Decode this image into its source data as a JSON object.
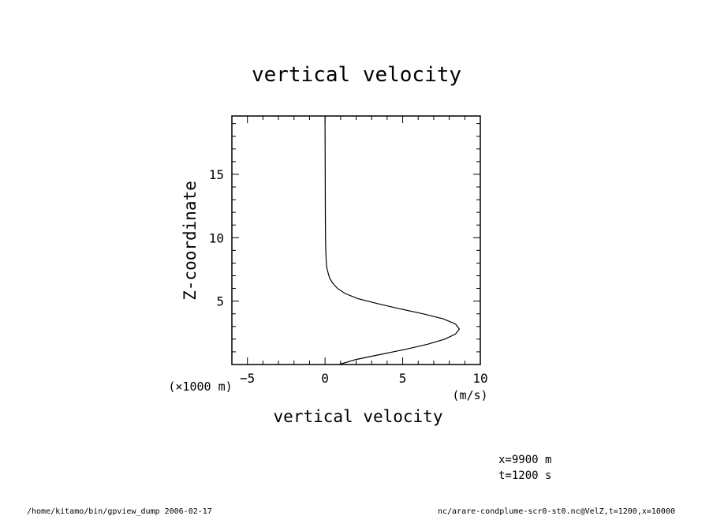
{
  "chart_data": {
    "type": "line",
    "title": "vertical velocity",
    "xlabel": "vertical velocity",
    "ylabel": "Z-coordinate",
    "x_unit": "(m/s)",
    "y_unit": "(×1000 m)",
    "xlim": [
      -6,
      10
    ],
    "ylim": [
      0,
      19.6
    ],
    "x_ticks": [
      -5,
      0,
      5,
      10
    ],
    "y_ticks": [
      5,
      10,
      15
    ],
    "x_minor_step": 1,
    "y_minor_step": 1,
    "grid": false,
    "series": [
      {
        "x": [
          0.9,
          2.0,
          3.6,
          5.2,
          6.6,
          7.7,
          8.4,
          8.65,
          8.4,
          7.6,
          6.3,
          4.8,
          3.4,
          2.1,
          1.3,
          0.8,
          0.5,
          0.3,
          0.2,
          0.12,
          0.08,
          0.05,
          0.03,
          0.02,
          0.0
        ],
        "y": [
          0.0,
          0.4,
          0.8,
          1.2,
          1.6,
          2.0,
          2.4,
          2.8,
          3.2,
          3.6,
          4.0,
          4.4,
          4.8,
          5.2,
          5.6,
          6.0,
          6.4,
          6.8,
          7.2,
          7.6,
          8.0,
          9.0,
          10.0,
          12.0,
          19.6
        ]
      }
    ]
  },
  "info": {
    "x_position": "x=9900 m",
    "time": "t=1200 s"
  },
  "footer": {
    "left": "/home/kitamo/bin/gpview_dump  2006-02-17",
    "right": "nc/arare-condplume-scr0-st0.nc@VelZ,t=1200,x=10000"
  }
}
